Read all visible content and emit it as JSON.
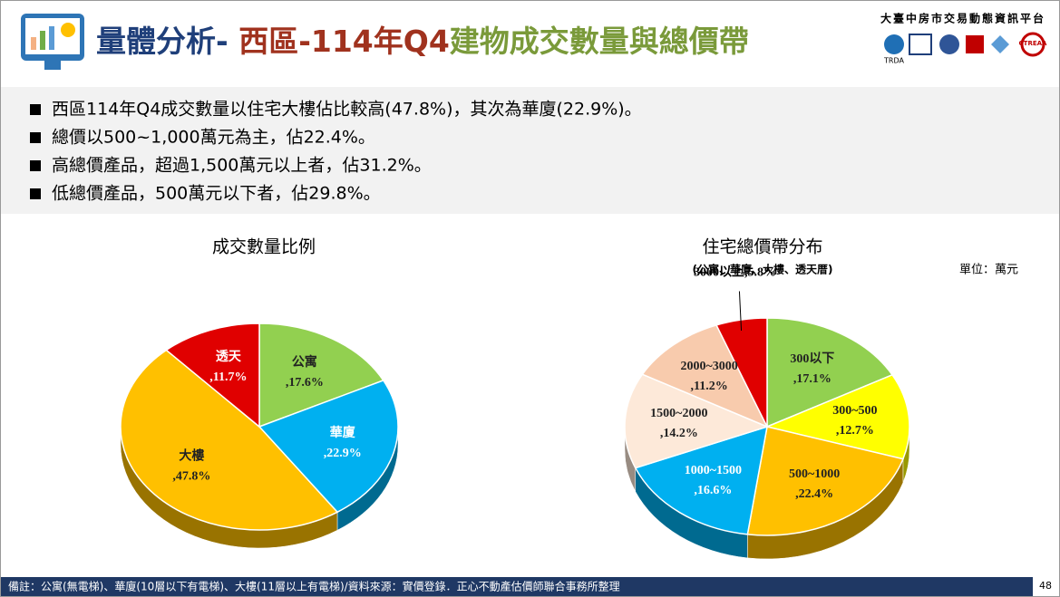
{
  "header": {
    "title": [
      {
        "text": "量體分析-",
        "color": "#1f3f7a"
      },
      {
        "text": " 西區-114年Q4",
        "color": "#a0321e"
      },
      {
        "text": "建物成交數量與總價帶",
        "color": "#7a9a3a"
      }
    ],
    "organization": "大臺中房市交易動態資訊平台",
    "logos": [
      "TRDA",
      "CTREAA"
    ]
  },
  "bullets": [
    "西區114年Q4成交數量以住宅大樓佔比較高(47.8%)，其次為華廈(22.9%)。",
    "總價以500~1,000萬元為主，佔22.4%。",
    "高總價產品，超過1,500萬元以上者，佔31.2%。",
    "低總價產品，500萬元以下者，佔29.8%。"
  ],
  "chart_data": [
    {
      "type": "pie",
      "title": "成交數量比例",
      "categories": [
        "公寓",
        "華廈",
        "大樓",
        "透天"
      ],
      "values": [
        17.6,
        22.9,
        47.8,
        11.7
      ],
      "value_labels": [
        ",17.6%",
        ",22.9%",
        ",47.8%",
        ",11.7%"
      ],
      "colors": [
        "#92d050",
        "#00b0f0",
        "#ffc000",
        "#e00000"
      ]
    },
    {
      "type": "pie",
      "title": "住宅總價帶分布",
      "subtitle": "(公寓、華廈、大樓、透天厝)",
      "unit": "單位：萬元",
      "categories": [
        "300以下",
        "300~500",
        "500~1000",
        "1000~1500",
        "1500~2000",
        "2000~3000",
        "3000以上"
      ],
      "values": [
        17.1,
        12.7,
        22.4,
        16.6,
        14.2,
        11.2,
        5.8
      ],
      "value_labels": [
        ",17.1%",
        ",12.7%",
        ",22.4%",
        ",16.6%",
        ",14.2%",
        ",11.2%",
        ",5.8%"
      ],
      "colors": [
        "#92d050",
        "#ffff00",
        "#ffc000",
        "#00b0f0",
        "#fde9d9",
        "#f8cbad",
        "#e00000"
      ]
    }
  ],
  "footer": {
    "note": "備註：公寓(無電梯)、華廈(10層以下有電梯)、大樓(11層以上有電梯)/資料來源：實價登錄．正心不動產估價師聯合事務所整理",
    "page": "48"
  }
}
